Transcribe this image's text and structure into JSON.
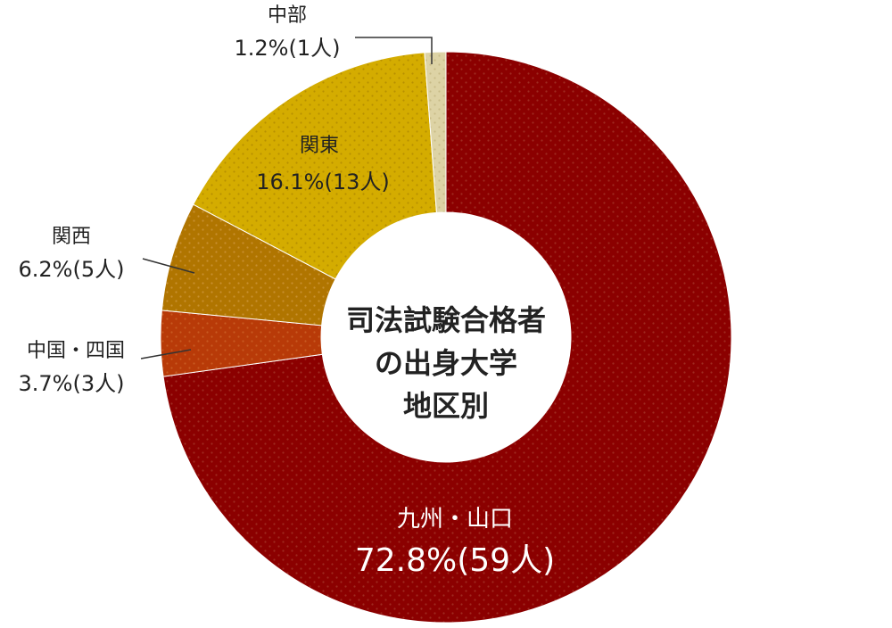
{
  "chart_data": {
    "type": "pie",
    "title": "司法試験合格者の出身大学地区別",
    "title_lines": [
      "司法試験合格者",
      "の出身大学",
      "地区別"
    ],
    "start_angle_deg": 0,
    "direction": "clockwise",
    "slices": [
      {
        "name": "九州・山口",
        "percent": 72.8,
        "count": 59,
        "percent_label": "72.8%",
        "count_label": "(59人)",
        "color": "#8b0000",
        "dot": "#9e2a20"
      },
      {
        "name": "中国・四国",
        "percent": 3.7,
        "count": 3,
        "percent_label": "3.7%",
        "count_label": "(3人)",
        "color": "#b83a08",
        "dot": "#c85a20"
      },
      {
        "name": "関西",
        "percent": 6.2,
        "count": 5,
        "percent_label": "6.2%",
        "count_label": "(5人)",
        "color": "#b07500",
        "dot": "#c89030"
      },
      {
        "name": "関東",
        "percent": 16.1,
        "count": 13,
        "percent_label": "16.1%",
        "count_label": "(13人)",
        "color": "#d4ac00",
        "dot": "#b89000"
      },
      {
        "name": "中部",
        "percent": 1.2,
        "count": 1,
        "percent_label": "1.2%",
        "count_label": "(1人)",
        "color": "#ddd3a5",
        "dot": "#c8bc88"
      }
    ]
  }
}
